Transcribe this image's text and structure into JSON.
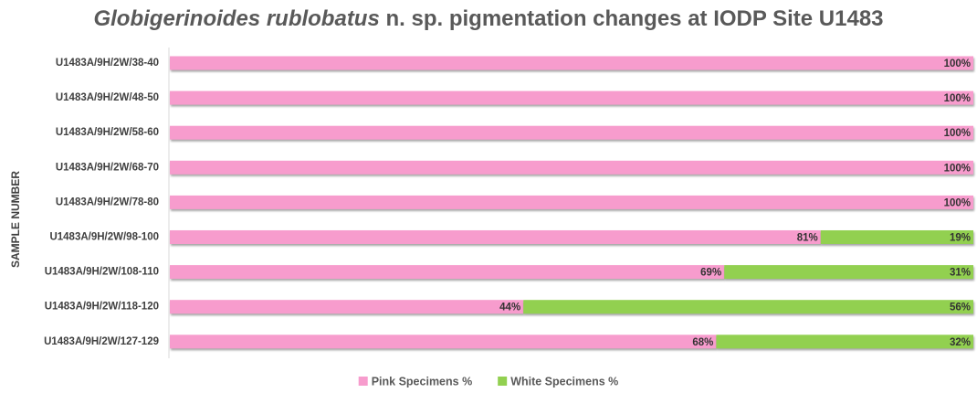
{
  "chart_data": {
    "type": "stacked_bar_horizontal",
    "title": [
      "Globigerinoides rublobatus",
      " n. sp. pigmentation changes at IODP Site U1483"
    ],
    "y_label": "SAMPLE NUMBER",
    "categories": [
      "U1483A/9H/2W/38-40",
      "U1483A/9H/2W/48-50",
      "U1483A/9H/2W/58-60",
      "U1483A/9H/2W/68-70",
      "U1483A/9H/2W/78-80",
      "U1483A/9H/2W/98-100",
      "U1483A/9H/2W/108-110",
      "U1483A/9H/2W/118-120",
      "U1483A/9H/2W/127-129"
    ],
    "series": [
      {
        "name": "Pink Specimens %",
        "color": "#f79ccd",
        "values": [
          100,
          100,
          100,
          100,
          100,
          81,
          69,
          44,
          68
        ],
        "value_labels": [
          "100%",
          "100%",
          "100%",
          "100%",
          "100%",
          "81%",
          "69%",
          "44%",
          "68%"
        ]
      },
      {
        "name": "White Specimens %",
        "color": "#92d050",
        "values": [
          0,
          0,
          0,
          0,
          0,
          19,
          31,
          56,
          32
        ],
        "value_labels": [
          null,
          null,
          null,
          null,
          null,
          "19%",
          "31%",
          "56%",
          "32%"
        ]
      }
    ],
    "xlim": [
      0,
      100
    ],
    "legend": "bottom"
  }
}
